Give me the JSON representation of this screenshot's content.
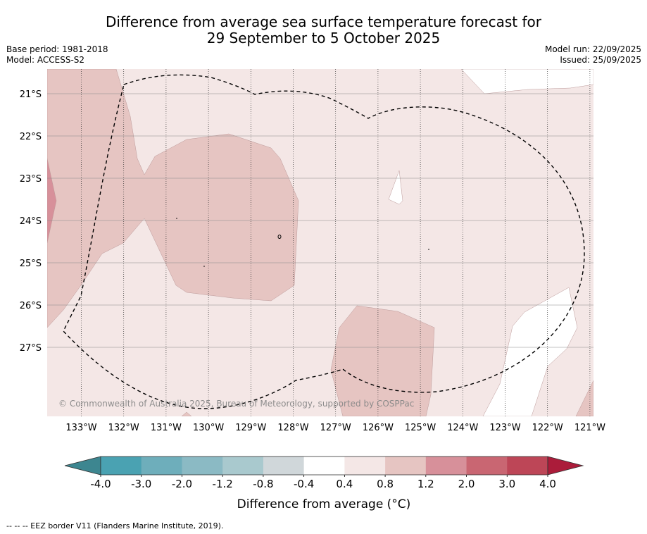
{
  "title": {
    "line1": "Difference from average sea surface temperature forecast for",
    "line2": "29 September to 5 October 2025"
  },
  "meta": {
    "base_period": "Base period: 1981-2018",
    "model": "Model: ACCESS-S2",
    "model_run": "Model run: 22/09/2025",
    "issued": "Issued: 25/09/2025"
  },
  "map": {
    "lon_labels": [
      "133°W",
      "132°W",
      "131°W",
      "130°W",
      "129°W",
      "128°W",
      "127°W",
      "126°W",
      "125°W",
      "124°W",
      "123°W",
      "122°W",
      "121°W"
    ],
    "lat_labels": [
      "21°S",
      "22°S",
      "23°S",
      "24°S",
      "25°S",
      "26°S",
      "27°S"
    ],
    "copyright": "© Commonwealth of Australia 2025, Bureau of Meteorology, supported by COSPPac"
  },
  "colorbar": {
    "tick_labels": [
      "-4.0",
      "-3.0",
      "-2.0",
      "-1.2",
      "-0.8",
      "-0.4",
      "0.4",
      "0.8",
      "1.2",
      "2.0",
      "3.0",
      "4.0"
    ],
    "label": "Difference from average (°C)",
    "under_color": "#3d8690",
    "over_color": "#ab1c3a",
    "colors": [
      "#4aa2b2",
      "#6eaebb",
      "#8bbac4",
      "#a9c9ce",
      "#d0d7da",
      "#ffffff",
      "#f4e7e6",
      "#e6c5c2",
      "#d7909a",
      "#c96672",
      "#bd4657"
    ]
  },
  "footnote": "--  --  -- EEZ border V11 (Flanders Marine Institute, 2019)."
}
